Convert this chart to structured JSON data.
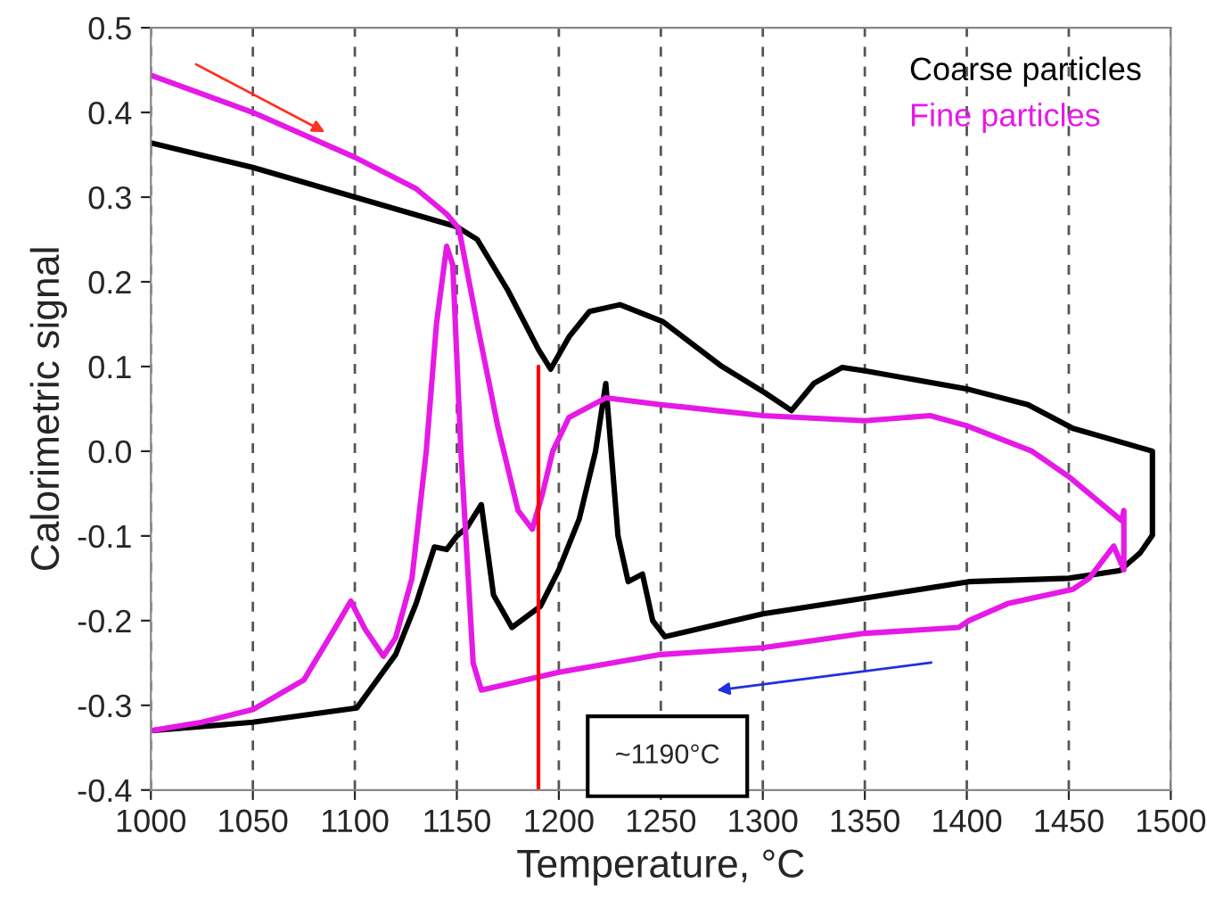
{
  "chart_data": {
    "type": "line",
    "xlabel": "Temperature, °C",
    "ylabel": "Calorimetric signal",
    "xlim": [
      1000,
      1500
    ],
    "xticks": [
      1000,
      1050,
      1100,
      1150,
      1200,
      1250,
      1300,
      1350,
      1400,
      1450,
      1500
    ],
    "ylim": [
      -0.4,
      0.5
    ],
    "yticks": [
      -0.4,
      -0.3,
      -0.2,
      -0.1,
      {
        "value": 0,
        "label": "0.0"
      },
      0.1,
      0.2,
      0.3,
      0.4,
      0.5
    ],
    "grid": "x",
    "legend": "top right",
    "line_style": "solid",
    "marker": "none",
    "annotations": [
      "~1190°C"
    ],
    "series": [
      {
        "name": "Coarse particles",
        "color": "#000000",
        "x": [
          1000,
          1050,
          1100,
          1150,
          1160,
          1175,
          1190,
          1196,
          1205,
          1215,
          1230,
          1251,
          1280,
          1301,
          1314,
          1325,
          1339,
          1350,
          1401,
          1430,
          1452,
          1491,
          1491,
          1485,
          1475,
          1450,
          1401,
          1351,
          1300,
          1252,
          1246,
          1241,
          1234,
          1229,
          1223,
          1218,
          1210,
          1200,
          1191,
          1177,
          1168,
          1162,
          1155,
          1150,
          1145,
          1139,
          1130,
          1120,
          1101,
          1050,
          1000
        ],
        "values": [
          0.364,
          0.335,
          0.3,
          0.265,
          0.25,
          0.19,
          0.12,
          0.097,
          0.135,
          0.165,
          0.173,
          0.153,
          0.1,
          0.069,
          0.048,
          0.08,
          0.099,
          0.095,
          0.073,
          0.055,
          0.027,
          0.0,
          -0.099,
          -0.12,
          -0.141,
          -0.15,
          -0.154,
          -0.173,
          -0.192,
          -0.219,
          -0.2,
          -0.145,
          -0.154,
          -0.1,
          0.08,
          0.0,
          -0.08,
          -0.14,
          -0.183,
          -0.208,
          -0.17,
          -0.063,
          -0.09,
          -0.1,
          -0.116,
          -0.113,
          -0.18,
          -0.24,
          -0.303,
          -0.32,
          -0.33
        ]
      },
      {
        "name": "Fine particles",
        "color": "#e619e6",
        "x": [
          1000,
          1050,
          1100,
          1130,
          1145,
          1151,
          1160,
          1170,
          1180,
          1187,
          1192,
          1197,
          1205,
          1223,
          1250,
          1300,
          1350,
          1382,
          1400,
          1432,
          1450,
          1476,
          1477,
          1477,
          1472,
          1460,
          1452,
          1420,
          1401,
          1396,
          1350,
          1300,
          1250,
          1200,
          1162,
          1158,
          1152,
          1148,
          1145,
          1140,
          1135,
          1128,
          1120,
          1114,
          1105,
          1098,
          1090,
          1075,
          1050,
          1025,
          1000
        ],
        "values": [
          0.444,
          0.4,
          0.347,
          0.31,
          0.28,
          0.263,
          0.15,
          0.03,
          -0.07,
          -0.092,
          -0.05,
          0.0,
          0.04,
          0.063,
          0.055,
          0.042,
          0.036,
          0.042,
          0.03,
          0.0,
          -0.03,
          -0.082,
          -0.07,
          -0.14,
          -0.112,
          -0.15,
          -0.163,
          -0.18,
          -0.2,
          -0.208,
          -0.215,
          -0.232,
          -0.24,
          -0.261,
          -0.282,
          -0.25,
          0.0,
          0.22,
          0.242,
          0.15,
          0.0,
          -0.15,
          -0.22,
          -0.242,
          -0.21,
          -0.177,
          -0.21,
          -0.27,
          -0.305,
          -0.32,
          -0.33
        ]
      },
      {
        "color": "#ff0000",
        "x": [
          1190,
          1190
        ],
        "values": [
          -0.4,
          0.1
        ]
      }
    ]
  }
}
